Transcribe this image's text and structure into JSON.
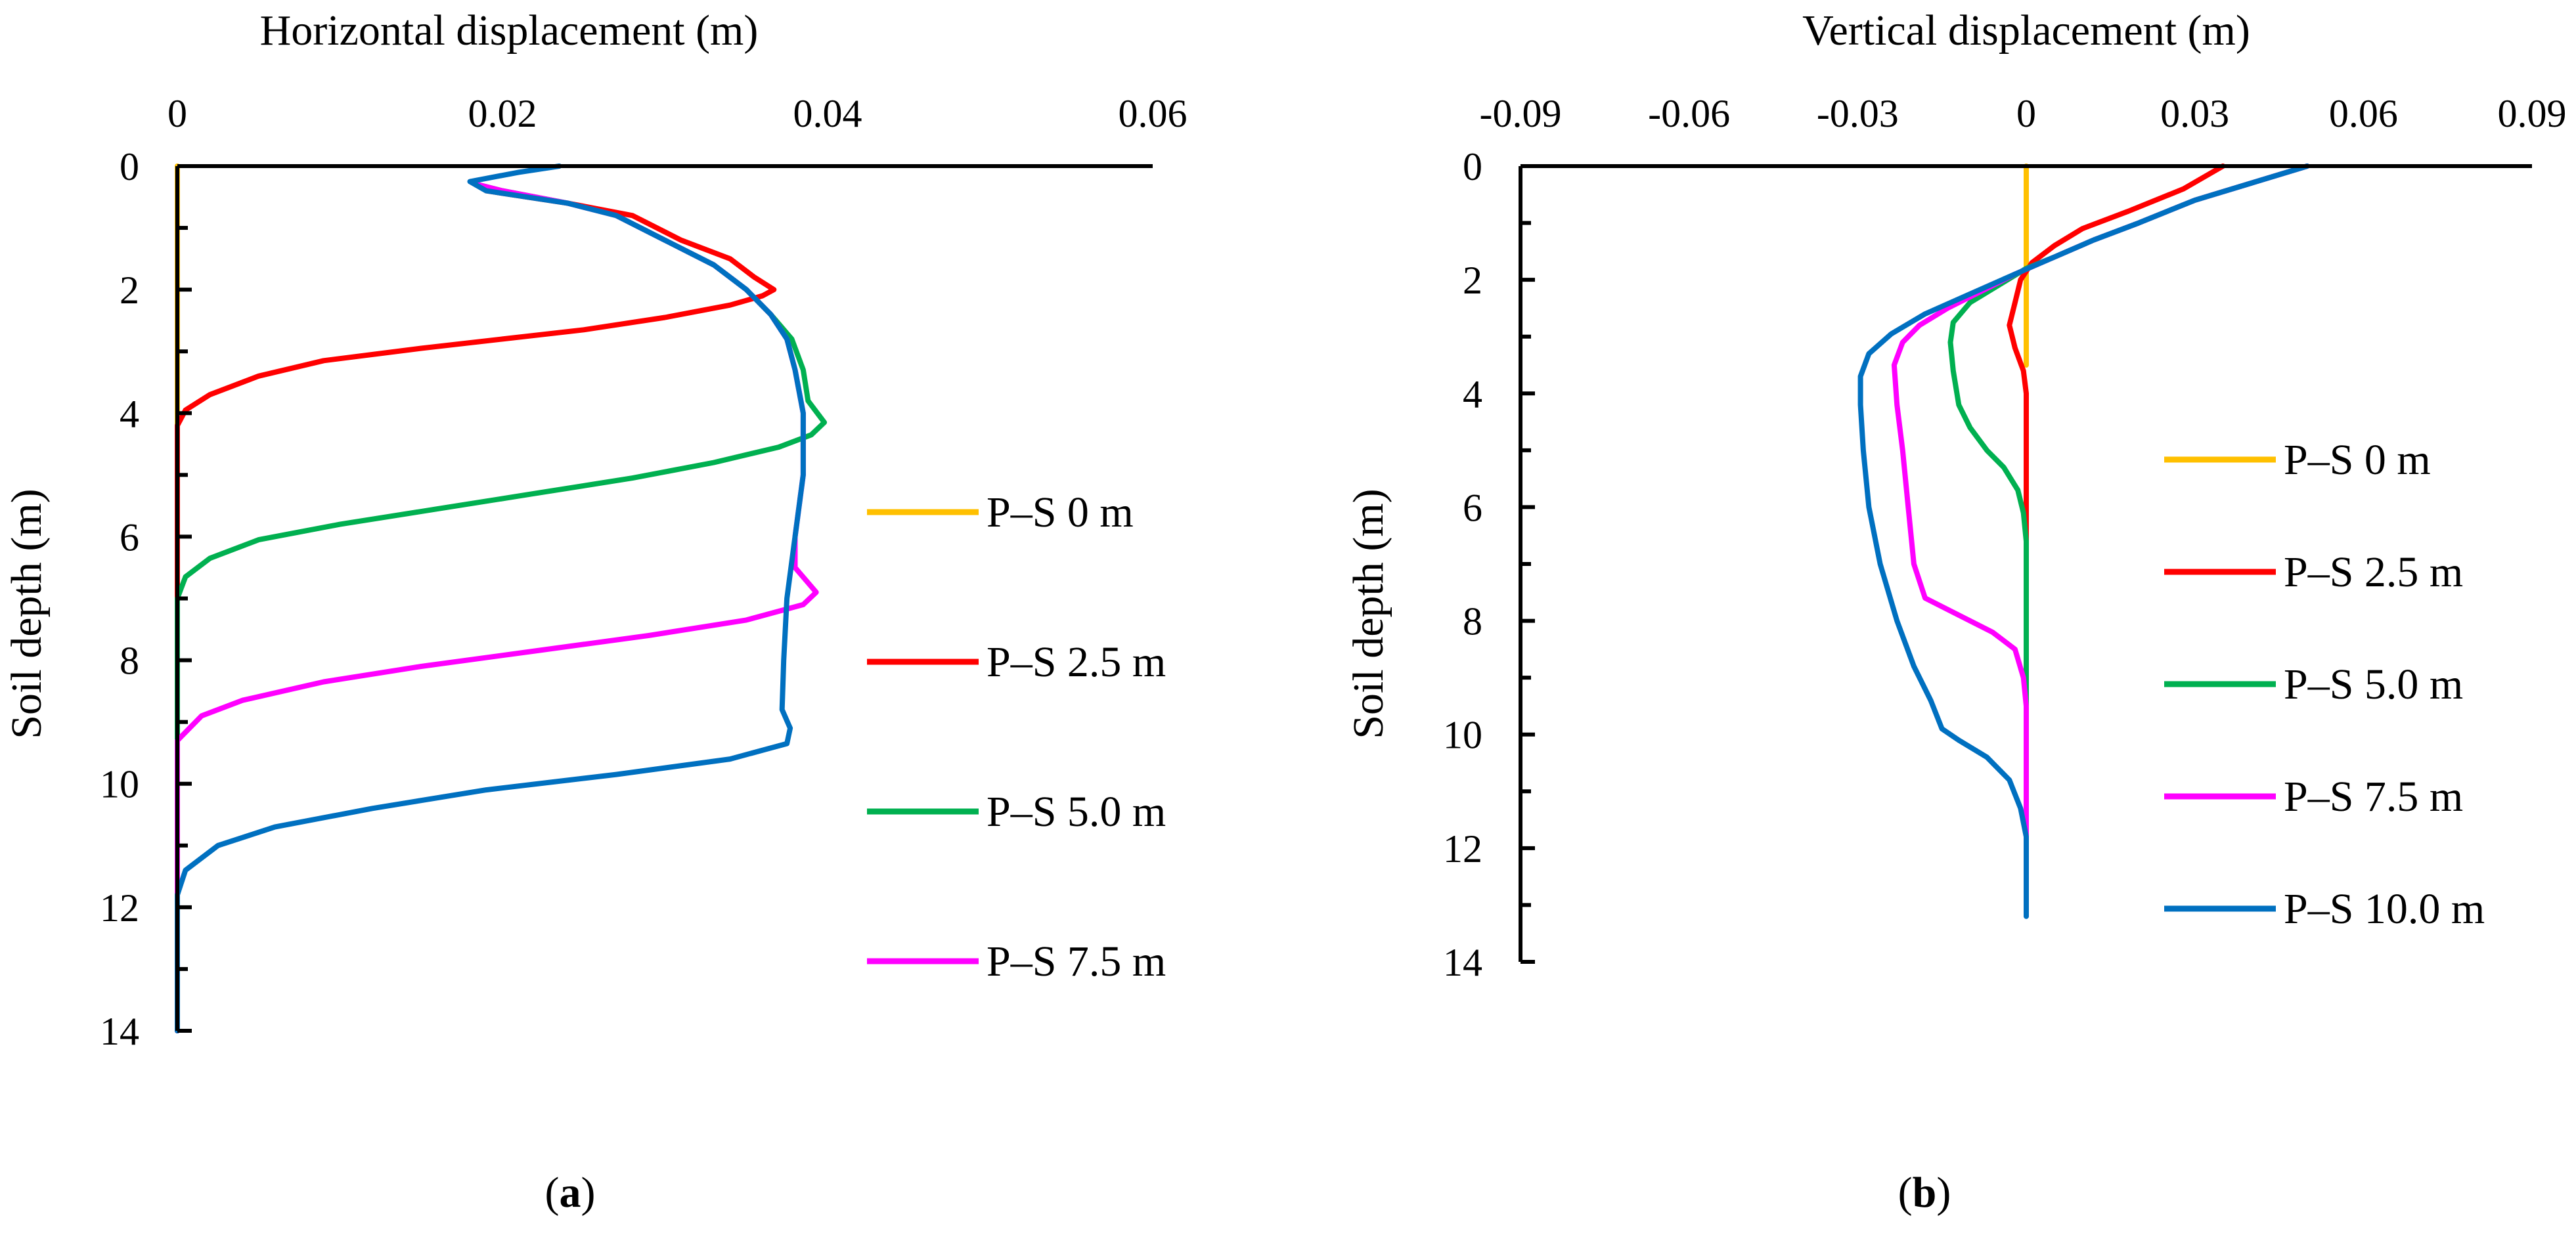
{
  "colors": {
    "p_s_0": "#FFC000",
    "p_s_2_5": "#FF0000",
    "p_s_5_0": "#00B050",
    "p_s_7_5": "#FF00FF",
    "p_s_10_0": "#0070C0",
    "axis": "#000000"
  },
  "captions": {
    "a_open": "(",
    "a_letter": "a",
    "a_close": ")",
    "b_open": "(",
    "b_letter": "b",
    "b_close": ")"
  },
  "chart_data": [
    {
      "type": "line",
      "panel": "a",
      "title": "",
      "xlabel": "Horizontal displacement (m)",
      "ylabel": "Soil depth (m)",
      "xlim": [
        0,
        0.06
      ],
      "ylim": [
        0,
        14
      ],
      "y_inverted": true,
      "x_ticks": [
        0,
        0.02,
        0.04,
        0.06
      ],
      "x_tick_labels": [
        "0",
        "0.02",
        "0.04",
        "0.06"
      ],
      "y_ticks": [
        0,
        2,
        4,
        6,
        8,
        10,
        12,
        14
      ],
      "y_tick_labels": [
        "0",
        "2",
        "4",
        "6",
        "8",
        "10",
        "12",
        "14"
      ],
      "grid": false,
      "legend_position": "right",
      "series": [
        {
          "name": "P–S 0 m",
          "color_key": "p_s_0",
          "in_legend": true,
          "points": [
            [
              0,
              0
            ],
            [
              0,
              14
            ]
          ]
        },
        {
          "name": "P–S 2.5 m",
          "color_key": "p_s_2_5",
          "in_legend": true,
          "points": [
            [
              0.0185,
              0.3
            ],
            [
              0.019,
              0.4
            ],
            [
              0.024,
              0.6
            ],
            [
              0.028,
              0.8
            ],
            [
              0.031,
              1.2
            ],
            [
              0.034,
              1.5
            ],
            [
              0.0355,
              1.8
            ],
            [
              0.0367,
              2.0
            ],
            [
              0.036,
              2.1
            ],
            [
              0.034,
              2.25
            ],
            [
              0.03,
              2.45
            ],
            [
              0.025,
              2.65
            ],
            [
              0.02,
              2.8
            ],
            [
              0.015,
              2.95
            ],
            [
              0.009,
              3.15
            ],
            [
              0.005,
              3.4
            ],
            [
              0.002,
              3.7
            ],
            [
              0.0005,
              3.95
            ],
            [
              0,
              4.2
            ],
            [
              0,
              14
            ]
          ]
        },
        {
          "name": "P–S 5.0 m",
          "color_key": "p_s_5_0",
          "in_legend": true,
          "points": [
            [
              0.0185,
              0.3
            ],
            [
              0.02,
              0.4
            ],
            [
              0.024,
              0.6
            ],
            [
              0.027,
              0.8
            ],
            [
              0.03,
              1.2
            ],
            [
              0.033,
              1.6
            ],
            [
              0.035,
              2.0
            ],
            [
              0.0365,
              2.4
            ],
            [
              0.0378,
              2.8
            ],
            [
              0.0385,
              3.3
            ],
            [
              0.0388,
              3.8
            ],
            [
              0.0398,
              4.15
            ],
            [
              0.039,
              4.35
            ],
            [
              0.037,
              4.55
            ],
            [
              0.033,
              4.8
            ],
            [
              0.028,
              5.05
            ],
            [
              0.022,
              5.3
            ],
            [
              0.016,
              5.55
            ],
            [
              0.01,
              5.8
            ],
            [
              0.005,
              6.05
            ],
            [
              0.002,
              6.35
            ],
            [
              0.0005,
              6.65
            ],
            [
              0,
              7.0
            ],
            [
              0,
              14
            ]
          ]
        },
        {
          "name": "P–S 7.5 m",
          "color_key": "p_s_7_5",
          "in_legend": true,
          "points": [
            [
              0.0185,
              0.3
            ],
            [
              0.02,
              0.4
            ],
            [
              0.024,
              0.6
            ],
            [
              0.027,
              0.8
            ],
            [
              0.03,
              1.2
            ],
            [
              0.033,
              1.6
            ],
            [
              0.035,
              2.0
            ],
            [
              0.0365,
              2.4
            ],
            [
              0.0375,
              2.8
            ],
            [
              0.038,
              3.3
            ],
            [
              0.0385,
              4.0
            ],
            [
              0.0385,
              5.0
            ],
            [
              0.038,
              6.0
            ],
            [
              0.038,
              6.5
            ],
            [
              0.0393,
              6.9
            ],
            [
              0.0385,
              7.1
            ],
            [
              0.035,
              7.35
            ],
            [
              0.029,
              7.6
            ],
            [
              0.022,
              7.85
            ],
            [
              0.015,
              8.1
            ],
            [
              0.009,
              8.35
            ],
            [
              0.004,
              8.65
            ],
            [
              0.0015,
              8.9
            ],
            [
              0,
              9.3
            ],
            [
              0,
              14
            ]
          ]
        },
        {
          "name": "P–S 10.0 m",
          "color_key": "p_s_10_0",
          "in_legend": false,
          "points": [
            [
              0.0235,
              0.0
            ],
            [
              0.021,
              0.1
            ],
            [
              0.018,
              0.25
            ],
            [
              0.019,
              0.4
            ],
            [
              0.024,
              0.6
            ],
            [
              0.027,
              0.8
            ],
            [
              0.03,
              1.2
            ],
            [
              0.033,
              1.6
            ],
            [
              0.035,
              2.0
            ],
            [
              0.0365,
              2.4
            ],
            [
              0.0375,
              2.8
            ],
            [
              0.038,
              3.3
            ],
            [
              0.0385,
              4.0
            ],
            [
              0.0385,
              5.0
            ],
            [
              0.038,
              6.0
            ],
            [
              0.0375,
              7.0
            ],
            [
              0.0373,
              8.0
            ],
            [
              0.0372,
              8.8
            ],
            [
              0.0377,
              9.1
            ],
            [
              0.0375,
              9.35
            ],
            [
              0.034,
              9.6
            ],
            [
              0.027,
              9.85
            ],
            [
              0.019,
              10.1
            ],
            [
              0.012,
              10.4
            ],
            [
              0.006,
              10.7
            ],
            [
              0.0025,
              11.0
            ],
            [
              0.0005,
              11.4
            ],
            [
              0,
              11.8
            ],
            [
              0,
              14
            ]
          ]
        }
      ]
    },
    {
      "type": "line",
      "panel": "b",
      "title": "",
      "xlabel": "Vertical displacement (m)",
      "ylabel": "Soil depth (m)",
      "xlim": [
        -0.09,
        0.09
      ],
      "ylim": [
        0,
        14
      ],
      "y_inverted": true,
      "x_ticks": [
        -0.09,
        -0.06,
        -0.03,
        0,
        0.03,
        0.06,
        0.09
      ],
      "x_tick_labels": [
        "-0.09",
        "-0.06",
        "-0.03",
        "0",
        "0.03",
        "0.06",
        "0.09"
      ],
      "y_ticks": [
        0,
        2,
        4,
        6,
        8,
        10,
        12,
        14
      ],
      "y_tick_labels": [
        "0",
        "2",
        "4",
        "6",
        "8",
        "10",
        "12",
        "14"
      ],
      "grid": false,
      "legend_position": "right",
      "series": [
        {
          "name": "P–S 0 m",
          "color_key": "p_s_0",
          "in_legend": true,
          "points": [
            [
              0,
              0
            ],
            [
              0,
              3.5
            ]
          ]
        },
        {
          "name": "P–S 2.5 m",
          "color_key": "p_s_2_5",
          "in_legend": true,
          "points": [
            [
              0.035,
              0.0
            ],
            [
              0.028,
              0.4
            ],
            [
              0.018,
              0.8
            ],
            [
              0.01,
              1.1
            ],
            [
              0.005,
              1.4
            ],
            [
              0.001,
              1.7
            ],
            [
              -0.001,
              2.0
            ],
            [
              -0.002,
              2.4
            ],
            [
              -0.003,
              2.8
            ],
            [
              -0.002,
              3.2
            ],
            [
              -0.0005,
              3.6
            ],
            [
              0,
              4.0
            ],
            [
              0,
              6.8
            ]
          ]
        },
        {
          "name": "P–S 5.0 m",
          "color_key": "p_s_5_0",
          "in_legend": true,
          "points": [
            [
              0.05,
              0.0
            ],
            [
              0.04,
              0.3
            ],
            [
              0.03,
              0.6
            ],
            [
              0.02,
              1.0
            ],
            [
              0.012,
              1.3
            ],
            [
              0.005,
              1.6
            ],
            [
              0.0,
              1.8
            ],
            [
              -0.005,
              2.1
            ],
            [
              -0.01,
              2.4
            ],
            [
              -0.013,
              2.75
            ],
            [
              -0.0135,
              3.1
            ],
            [
              -0.013,
              3.6
            ],
            [
              -0.012,
              4.2
            ],
            [
              -0.01,
              4.6
            ],
            [
              -0.007,
              5.0
            ],
            [
              -0.004,
              5.3
            ],
            [
              -0.0015,
              5.7
            ],
            [
              -0.0005,
              6.1
            ],
            [
              0,
              6.6
            ],
            [
              0,
              10.0
            ]
          ]
        },
        {
          "name": "P–S 7.5 m",
          "color_key": "p_s_7_5",
          "in_legend": true,
          "points": [
            [
              0.05,
              0.0
            ],
            [
              0.04,
              0.3
            ],
            [
              0.03,
              0.6
            ],
            [
              0.02,
              1.0
            ],
            [
              0.012,
              1.3
            ],
            [
              0.005,
              1.6
            ],
            [
              -0.002,
              1.9
            ],
            [
              -0.008,
              2.2
            ],
            [
              -0.014,
              2.5
            ],
            [
              -0.019,
              2.8
            ],
            [
              -0.022,
              3.1
            ],
            [
              -0.0235,
              3.5
            ],
            [
              -0.023,
              4.2
            ],
            [
              -0.022,
              5.0
            ],
            [
              -0.021,
              6.0
            ],
            [
              -0.02,
              7.0
            ],
            [
              -0.018,
              7.6
            ],
            [
              -0.012,
              7.9
            ],
            [
              -0.006,
              8.2
            ],
            [
              -0.002,
              8.5
            ],
            [
              -0.0005,
              9.0
            ],
            [
              0,
              9.5
            ],
            [
              0,
              12.0
            ]
          ]
        },
        {
          "name": "P–S 10.0 m",
          "color_key": "p_s_10_0",
          "in_legend": true,
          "points": [
            [
              0.05,
              0.0
            ],
            [
              0.04,
              0.3
            ],
            [
              0.03,
              0.6
            ],
            [
              0.02,
              1.0
            ],
            [
              0.012,
              1.3
            ],
            [
              0.005,
              1.6
            ],
            [
              -0.002,
              1.9
            ],
            [
              -0.01,
              2.25
            ],
            [
              -0.018,
              2.6
            ],
            [
              -0.024,
              2.95
            ],
            [
              -0.028,
              3.3
            ],
            [
              -0.0295,
              3.7
            ],
            [
              -0.0295,
              4.2
            ],
            [
              -0.029,
              5.0
            ],
            [
              -0.028,
              6.0
            ],
            [
              -0.026,
              7.0
            ],
            [
              -0.023,
              8.0
            ],
            [
              -0.02,
              8.8
            ],
            [
              -0.017,
              9.4
            ],
            [
              -0.015,
              9.9
            ],
            [
              -0.012,
              10.1
            ],
            [
              -0.007,
              10.4
            ],
            [
              -0.003,
              10.8
            ],
            [
              -0.001,
              11.3
            ],
            [
              0,
              11.8
            ],
            [
              0,
              13.2
            ]
          ]
        }
      ]
    }
  ]
}
